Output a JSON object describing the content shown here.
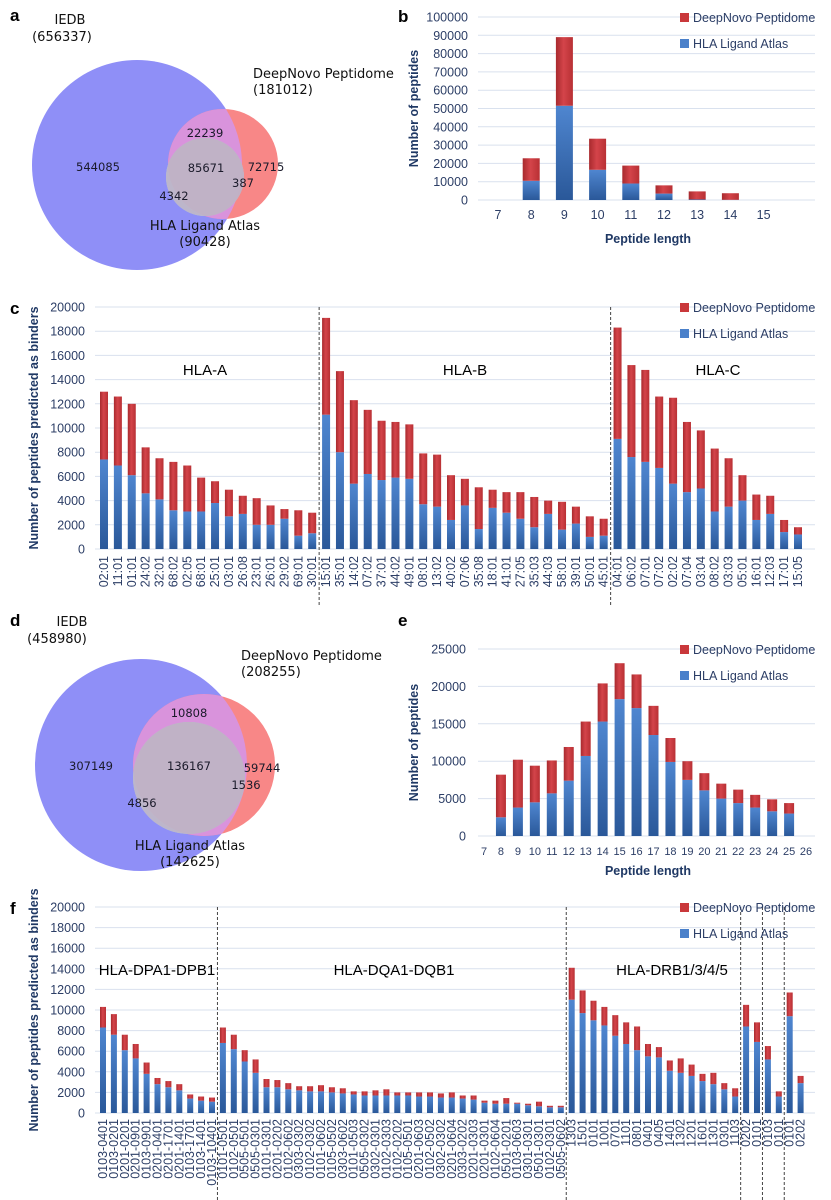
{
  "colors": {
    "deepnovo": "#c9383b",
    "deepnovo_dark": "#a82a2e",
    "hla_atlas": "#4a80ca",
    "hla_atlas_dark": "#2d5c9f",
    "iedb_circle": "#8f8ff7",
    "deepnovo_circle": "#f88787",
    "hla_circle": "#b9c6c6",
    "axis_text": "#2c3e66"
  },
  "panels": {
    "a": {
      "letter": "a"
    },
    "b": {
      "letter": "b"
    },
    "c": {
      "letter": "c"
    },
    "d": {
      "letter": "d"
    },
    "e": {
      "letter": "e"
    },
    "f": {
      "letter": "f"
    }
  },
  "legend": {
    "deepnovo": "DeepNovo Peptidome",
    "hla_atlas": "HLA Ligand Atlas"
  },
  "venn_a": {
    "iedb_name": "IEDB",
    "iedb_total": "(656337)",
    "deepnovo_name": "DeepNovo Peptidome",
    "deepnovo_total": "(181012)",
    "hla_name": "HLA Ligand Atlas",
    "hla_total": "(90428)",
    "iedb_only": "544085",
    "iedb_deepnovo": "22239",
    "all_three": "85671",
    "deepnovo_only": "72715",
    "deepnovo_hla": "387",
    "iedb_hla": "4342"
  },
  "venn_d": {
    "iedb_name": "IEDB",
    "iedb_total": "(458980)",
    "deepnovo_name": "DeepNovo Peptidome",
    "deepnovo_total": "(208255)",
    "hla_name": "HLA Ligand Atlas",
    "hla_total": "(142625)",
    "iedb_only": "307149",
    "iedb_deepnovo": "10808",
    "all_three": "136167",
    "deepnovo_only": "59744",
    "deepnovo_hla": "1536",
    "iedb_hla": "4856"
  },
  "chart_data": [
    {
      "id": "b",
      "type": "bar",
      "stacked": true,
      "title": "",
      "xlabel": "Peptide length",
      "ylabel": "Number of peptides",
      "ylim": [
        0,
        100000
      ],
      "yticks": [
        0,
        10000,
        20000,
        30000,
        40000,
        50000,
        60000,
        70000,
        80000,
        90000,
        100000
      ],
      "grid": true,
      "legend": "top-right",
      "categories": [
        "7",
        "8",
        "9",
        "10",
        "11",
        "12",
        "13",
        "14",
        "15"
      ],
      "series": [
        {
          "name": "HLA Ligand Atlas",
          "values": [
            0,
            10500,
            51500,
            16500,
            9000,
            3500,
            300,
            100,
            0
          ]
        },
        {
          "name": "DeepNovo Peptidome",
          "values": [
            0,
            12300,
            37500,
            17000,
            9800,
            4500,
            4400,
            3600,
            0
          ]
        }
      ]
    },
    {
      "id": "c",
      "type": "bar",
      "stacked": true,
      "title": "",
      "xlabel": "",
      "ylabel": "Number of peptides predicted as binders",
      "ylim": [
        0,
        20000
      ],
      "yticks": [
        0,
        2000,
        4000,
        6000,
        8000,
        10000,
        12000,
        14000,
        16000,
        18000,
        20000
      ],
      "grid": true,
      "legend": "top-right",
      "groups": [
        {
          "label": "HLA-A",
          "count": 16
        },
        {
          "label": "HLA-B",
          "count": 21
        },
        {
          "label": "HLA-C",
          "count": 14
        }
      ],
      "categories": [
        "02:01",
        "11:01",
        "01:01",
        "24:02",
        "32:01",
        "68:02",
        "02:05",
        "68:01",
        "25:01",
        "03:01",
        "26:08",
        "23:01",
        "26:01",
        "29:02",
        "69:01",
        "30:01",
        "15:01",
        "35:01",
        "14:02",
        "07:02",
        "37:01",
        "44:02",
        "49:01",
        "08:01",
        "13:02",
        "40:02",
        "07:06",
        "35:08",
        "18:01",
        "41:01",
        "27:05",
        "35:03",
        "44:03",
        "58:01",
        "39:01",
        "50:01",
        "45:01",
        "04:01",
        "06:02",
        "07:01",
        "07:02",
        "02:02",
        "07:04",
        "03:04",
        "08:02",
        "03:03",
        "05:01",
        "16:01",
        "12:03",
        "17:01",
        "15:05"
      ],
      "series": [
        {
          "name": "HLA Ligand Atlas",
          "values": [
            7400,
            6900,
            6100,
            4600,
            4100,
            3200,
            3100,
            3100,
            3800,
            2700,
            2900,
            2000,
            2000,
            2500,
            1100,
            1300,
            11100,
            8000,
            5400,
            6200,
            5700,
            5900,
            5800,
            3700,
            3500,
            2400,
            3600,
            1650,
            3400,
            3000,
            2500,
            1800,
            2900,
            1600,
            2100,
            1000,
            1100,
            9100,
            7600,
            7200,
            6700,
            5400,
            4700,
            5000,
            3100,
            3500,
            4000,
            2400,
            2900,
            1400,
            1200
          ]
        },
        {
          "name": "DeepNovo Peptidome",
          "values": [
            5600,
            5700,
            5900,
            3800,
            3400,
            4000,
            3800,
            2800,
            1800,
            2200,
            1500,
            2200,
            1600,
            800,
            2100,
            1700,
            8000,
            6700,
            6900,
            5300,
            4900,
            4600,
            4500,
            4200,
            4300,
            3700,
            2200,
            3450,
            1500,
            1700,
            2200,
            2500,
            1100,
            2300,
            1400,
            1700,
            1400,
            9200,
            7600,
            7600,
            5900,
            7100,
            5800,
            4800,
            5200,
            4000,
            2100,
            2100,
            1500,
            1000,
            600
          ]
        }
      ]
    },
    {
      "id": "e",
      "type": "bar",
      "stacked": true,
      "title": "",
      "xlabel": "Peptide length",
      "ylabel": "Number of peptides",
      "ylim": [
        0,
        25000
      ],
      "yticks": [
        0,
        5000,
        10000,
        15000,
        20000,
        25000
      ],
      "grid": true,
      "legend": "top-right",
      "categories": [
        "7",
        "8",
        "9",
        "10",
        "11",
        "12",
        "13",
        "14",
        "15",
        "16",
        "17",
        "18",
        "19",
        "20",
        "21",
        "22",
        "23",
        "24",
        "25",
        "26"
      ],
      "series": [
        {
          "name": "HLA Ligand Atlas",
          "values": [
            0,
            2500,
            3800,
            4500,
            5700,
            7400,
            10700,
            15300,
            18300,
            17100,
            13500,
            9900,
            7500,
            6100,
            5000,
            4400,
            3800,
            3300,
            3000,
            0
          ]
        },
        {
          "name": "DeepNovo Peptidome",
          "values": [
            0,
            5700,
            6400,
            4900,
            4400,
            4500,
            4600,
            5100,
            4800,
            4500,
            3900,
            3200,
            2500,
            2300,
            2000,
            1800,
            1700,
            1600,
            1400,
            0
          ]
        }
      ]
    },
    {
      "id": "f",
      "type": "bar",
      "stacked": true,
      "title": "",
      "xlabel": "",
      "ylabel": "Number of peptides predicted as binders",
      "ylim": [
        0,
        20000
      ],
      "yticks": [
        0,
        2000,
        4000,
        6000,
        8000,
        10000,
        12000,
        14000,
        16000,
        18000,
        20000
      ],
      "grid": true,
      "legend": "top-right",
      "groups": [
        {
          "label": "HLA-DPA1-DPB1",
          "count": 11
        },
        {
          "label": "HLA-DQA1-DQB1",
          "count": 32
        },
        {
          "label": "HLA-DRB1/3/4/5",
          "count": 16
        },
        {
          "label": "",
          "count": 2
        },
        {
          "label": "",
          "count": 2
        },
        {
          "label": "",
          "count": 2
        }
      ],
      "categories": [
        "0103-0401",
        "0103-0201",
        "0201-0201",
        "0201-0901",
        "0103-0901",
        "0201-0401",
        "0201-1701",
        "0201-1401",
        "0103-1701",
        "0103-1401",
        "0103-10401",
        "0101-0501",
        "0102-0501",
        "0505-0501",
        "0505-0301",
        "0101-0301",
        "0201-0202",
        "0102-0602",
        "0303-0302",
        "0102-0302",
        "0101-0602",
        "0105-0502",
        "0303-0602",
        "0101-0503",
        "0505-0302",
        "0302-0301",
        "0102-0303",
        "0102-0202",
        "0105-0501",
        "0201-0603",
        "0102-0502",
        "0302-0302",
        "0201-0604",
        "0303-0202",
        "0201-0303",
        "0201-0301",
        "0102-0604",
        "0501-0201",
        "0103-0603",
        "0301-0301",
        "0501-0301",
        "0102-0301",
        "0505-0602",
        "1303",
        "1501",
        "0101",
        "1001",
        "0701",
        "1101",
        "0801",
        "0401",
        "0405",
        "1401",
        "1302",
        "1201",
        "1601",
        "1301",
        "0301",
        "1103",
        "0202",
        "0101",
        "0103",
        "0101",
        "0101",
        "0202"
      ],
      "series": [
        {
          "name": "HLA Ligand Atlas",
          "values": [
            8300,
            7600,
            6100,
            5300,
            3800,
            2800,
            2500,
            2200,
            1400,
            1200,
            1100,
            6800,
            6200,
            5000,
            3900,
            2500,
            2500,
            2300,
            2200,
            2100,
            2100,
            2000,
            1900,
            1800,
            1700,
            1700,
            1700,
            1700,
            1700,
            1600,
            1600,
            1500,
            1500,
            1400,
            1300,
            1000,
            900,
            900,
            900,
            750,
            650,
            550,
            550,
            11000,
            9700,
            9000,
            8500,
            7500,
            6700,
            6100,
            5500,
            5400,
            4100,
            3900,
            3600,
            3100,
            2800,
            2300,
            1600,
            8400,
            6900,
            5200,
            1600,
            9400,
            2900
          ]
        },
        {
          "name": "DeepNovo Peptidome",
          "values": [
            2000,
            2000,
            1500,
            1400,
            1100,
            600,
            600,
            600,
            400,
            400,
            400,
            1500,
            1400,
            1100,
            1300,
            800,
            700,
            600,
            400,
            500,
            600,
            500,
            500,
            300,
            400,
            500,
            600,
            300,
            300,
            400,
            400,
            400,
            500,
            300,
            400,
            200,
            300,
            550,
            100,
            150,
            450,
            150,
            150,
            3100,
            2200,
            1900,
            1800,
            2000,
            2100,
            2300,
            1200,
            1000,
            1000,
            1400,
            1100,
            700,
            1100,
            600,
            800,
            2100,
            1900,
            1300,
            500,
            2300,
            700
          ]
        }
      ]
    }
  ]
}
